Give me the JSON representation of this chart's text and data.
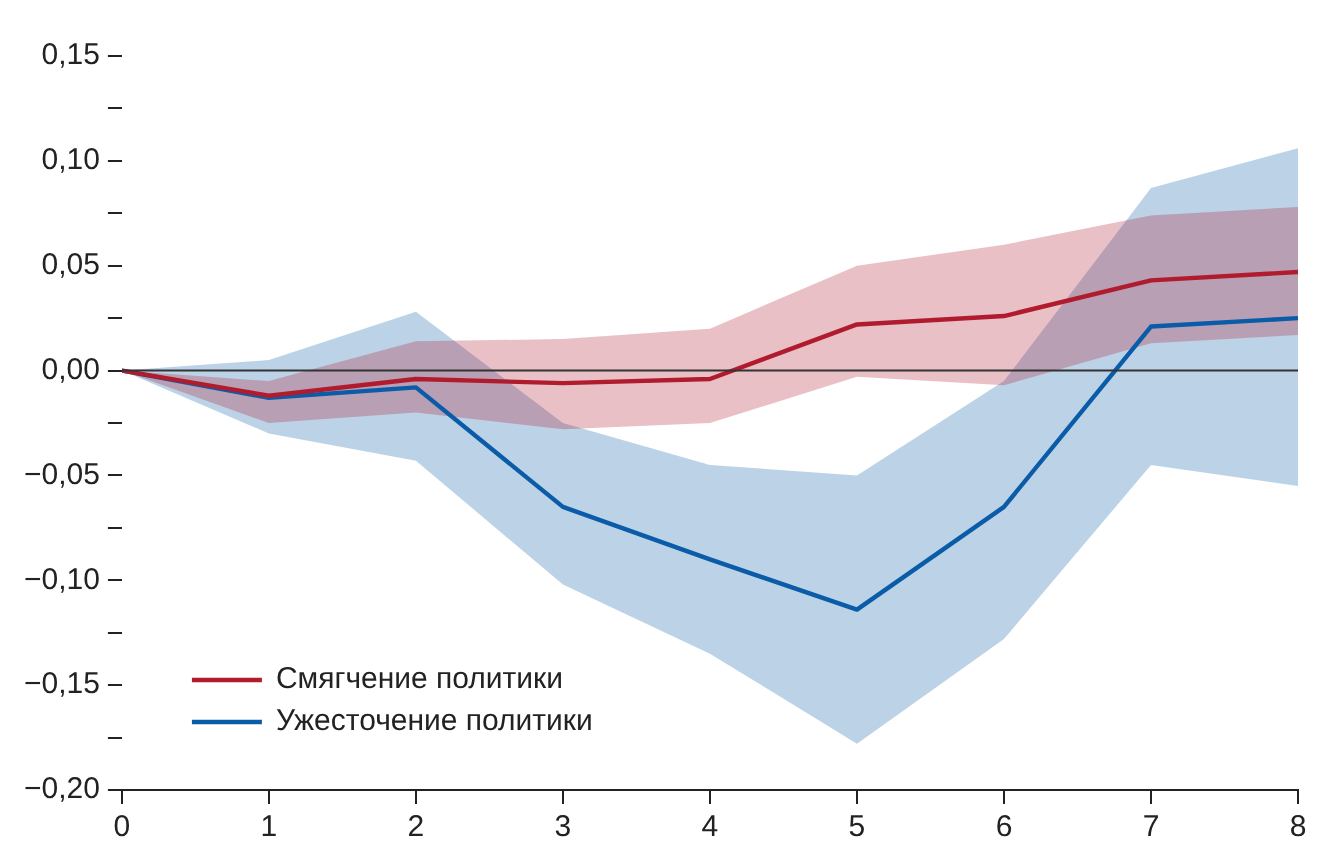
{
  "chart_data": {
    "type": "line",
    "x": [
      0,
      1,
      2,
      3,
      4,
      5,
      6,
      7,
      8
    ],
    "xlim": [
      0,
      8
    ],
    "xticks": [
      0,
      1,
      2,
      3,
      4,
      5,
      6,
      7,
      8
    ],
    "ylim": [
      -0.2,
      0.15
    ],
    "yticks": [
      {
        "value": -0.2,
        "label": "−0,20"
      },
      {
        "value": -0.175,
        "label": null
      },
      {
        "value": -0.15,
        "label": "−0,15"
      },
      {
        "value": -0.125,
        "label": null
      },
      {
        "value": -0.1,
        "label": "−0,10"
      },
      {
        "value": -0.075,
        "label": null
      },
      {
        "value": -0.05,
        "label": "−0,05"
      },
      {
        "value": -0.025,
        "label": null
      },
      {
        "value": 0,
        "label": "0,00"
      },
      {
        "value": 0.025,
        "label": null
      },
      {
        "value": 0.05,
        "label": "0,05"
      },
      {
        "value": 0.075,
        "label": null
      },
      {
        "value": 0.1,
        "label": "0,10"
      },
      {
        "value": 0.125,
        "label": null
      },
      {
        "value": 0.15,
        "label": "0,15"
      }
    ],
    "series": [
      {
        "name": "Смягчение политики",
        "color": "#b01c2e",
        "values": [
          0,
          -0.012,
          -0.004,
          -0.006,
          -0.004,
          0.022,
          0.026,
          0.043,
          0.047
        ],
        "upper": [
          0,
          -0.005,
          0.014,
          0.015,
          0.02,
          0.05,
          0.06,
          0.074,
          0.078
        ],
        "lower": [
          0,
          -0.025,
          -0.02,
          -0.028,
          -0.025,
          -0.003,
          -0.007,
          0.013,
          0.017
        ]
      },
      {
        "name": "Ужесточение политики",
        "color": "#0b5ca8",
        "values": [
          0,
          -0.013,
          -0.008,
          -0.065,
          -0.09,
          -0.114,
          -0.065,
          0.021,
          0.025
        ],
        "upper": [
          0,
          0.005,
          0.028,
          -0.025,
          -0.045,
          -0.05,
          -0.005,
          0.087,
          0.106
        ],
        "lower": [
          0,
          -0.03,
          -0.043,
          -0.102,
          -0.135,
          -0.178,
          -0.128,
          -0.045,
          -0.055
        ]
      }
    ],
    "ref_lines": [
      {
        "axis": "y",
        "value": 0,
        "color": "#333333"
      }
    ],
    "legend": "bottom left",
    "grid": false,
    "marker": "none",
    "line_style": "solid"
  }
}
